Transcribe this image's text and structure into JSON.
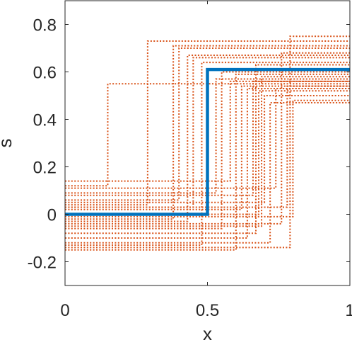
{
  "chart_data": {
    "type": "line",
    "xlabel": "x",
    "ylabel": "s",
    "xlim": [
      0,
      1
    ],
    "ylim": [
      -0.3,
      0.9
    ],
    "xticks": [
      0,
      0.5,
      1
    ],
    "xtick_labels": [
      "0",
      "0.5",
      "1"
    ],
    "yticks": [
      -0.2,
      0,
      0.2,
      0.4,
      0.6,
      0.8
    ],
    "ytick_labels": [
      "-0.2",
      "0",
      "0.2",
      "0.4",
      "0.6",
      "0.8"
    ],
    "grid": false,
    "box": true,
    "colors": {
      "truth": "#0072BD",
      "samples": "#D95319",
      "axes": "#262626"
    },
    "truth": {
      "x_jump": 0.5,
      "left": 0.0,
      "right": 0.61
    },
    "samples": [
      {
        "x_jump": 0.15,
        "left": 0.12,
        "right": 0.55
      },
      {
        "x_jump": 0.29,
        "left": 0.04,
        "right": 0.73
      },
      {
        "x_jump": 0.38,
        "left": -0.02,
        "right": 0.71
      },
      {
        "x_jump": 0.4,
        "left": 0.06,
        "right": 0.7
      },
      {
        "x_jump": 0.43,
        "left": -0.03,
        "right": 0.67
      },
      {
        "x_jump": 0.45,
        "left": 0.03,
        "right": 0.66
      },
      {
        "x_jump": 0.48,
        "left": -0.13,
        "right": 0.64
      },
      {
        "x_jump": 0.53,
        "left": 0.09,
        "right": 0.57
      },
      {
        "x_jump": 0.55,
        "left": -0.06,
        "right": 0.6
      },
      {
        "x_jump": 0.58,
        "left": 0.14,
        "right": 0.56
      },
      {
        "x_jump": 0.6,
        "left": -0.15,
        "right": 0.59
      },
      {
        "x_jump": 0.62,
        "left": 0.02,
        "right": 0.54
      },
      {
        "x_jump": 0.64,
        "left": -0.1,
        "right": 0.53
      },
      {
        "x_jump": 0.66,
        "left": 0.08,
        "right": 0.56
      },
      {
        "x_jump": 0.67,
        "left": -0.08,
        "right": 0.63
      },
      {
        "x_jump": 0.68,
        "left": 0.0,
        "right": 0.52
      },
      {
        "x_jump": 0.69,
        "left": -0.05,
        "right": 0.58
      },
      {
        "x_jump": 0.7,
        "left": 0.05,
        "right": 0.5
      },
      {
        "x_jump": 0.72,
        "left": -0.12,
        "right": 0.47
      },
      {
        "x_jump": 0.74,
        "left": 0.11,
        "right": 0.53
      },
      {
        "x_jump": 0.76,
        "left": -0.04,
        "right": 0.68
      },
      {
        "x_jump": 0.78,
        "left": 0.03,
        "right": 0.54
      },
      {
        "x_jump": 0.79,
        "left": -0.14,
        "right": 0.75
      },
      {
        "x_jump": 0.8,
        "left": -0.01,
        "right": 0.48
      }
    ]
  }
}
